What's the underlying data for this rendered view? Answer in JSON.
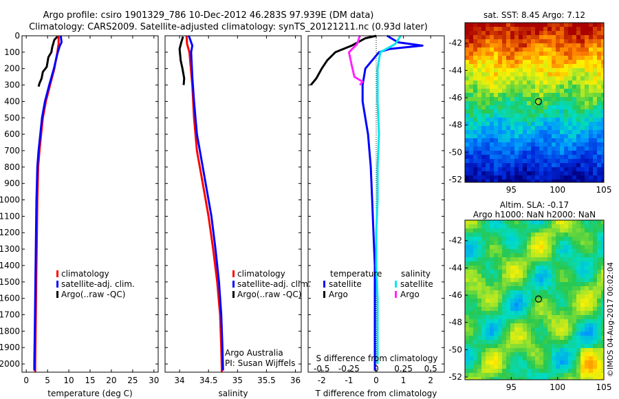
{
  "header": {
    "line1": "Argo profile: csiro 1901329_786 10-Dec-2012 46.283S 97.939E (DM data)",
    "line2": "Climatology: CARS2009. Satellite-adjusted climatology: synTS_20121211.nc (0.93d later)"
  },
  "colors": {
    "climatology": "#ff0000",
    "satellite": "#0000ff",
    "argo": "#000000",
    "salinity_satellite": "#00e5ee",
    "salinity_argo": "#ff22ff"
  },
  "chart_data": [
    {
      "type": "line",
      "id": "temperature",
      "xlabel": "temperature (deg C)",
      "xlim": [
        -1,
        31
      ],
      "xticks": [
        0,
        5,
        10,
        15,
        20,
        25,
        30
      ],
      "ylim": [
        2050,
        0
      ],
      "yticks": [
        0,
        100,
        200,
        300,
        400,
        500,
        600,
        700,
        800,
        900,
        1000,
        1100,
        1200,
        1300,
        1400,
        1500,
        1600,
        1700,
        1800,
        1900,
        2000
      ],
      "legend": [
        "climatology",
        "satellite-adj. clim.",
        "Argo(..raw -QC)"
      ],
      "series": [
        {
          "name": "climatology",
          "color": "#ff0000",
          "points": [
            [
              7.6,
              0
            ],
            [
              7.6,
              50
            ],
            [
              7.3,
              100
            ],
            [
              6.6,
              200
            ],
            [
              5.6,
              300
            ],
            [
              4.6,
              400
            ],
            [
              3.9,
              500
            ],
            [
              3.5,
              600
            ],
            [
              3.1,
              700
            ],
            [
              2.8,
              800
            ],
            [
              2.7,
              900
            ],
            [
              2.6,
              1000
            ],
            [
              2.5,
              1200
            ],
            [
              2.4,
              1400
            ],
            [
              2.3,
              1600
            ],
            [
              2.2,
              1800
            ],
            [
              2.1,
              2000
            ],
            [
              2.1,
              2050
            ]
          ]
        },
        {
          "name": "satellite-adj. clim.",
          "color": "#0000ff",
          "points": [
            [
              8.1,
              0
            ],
            [
              8.3,
              40
            ],
            [
              7.9,
              60
            ],
            [
              7.4,
              100
            ],
            [
              6.5,
              200
            ],
            [
              5.4,
              300
            ],
            [
              4.4,
              400
            ],
            [
              3.7,
              500
            ],
            [
              3.3,
              600
            ],
            [
              2.9,
              700
            ],
            [
              2.6,
              800
            ],
            [
              2.5,
              900
            ],
            [
              2.4,
              1000
            ],
            [
              2.3,
              1200
            ],
            [
              2.2,
              1400
            ],
            [
              2.1,
              1600
            ],
            [
              2.0,
              1800
            ],
            [
              1.9,
              2000
            ],
            [
              1.9,
              2040
            ]
          ]
        },
        {
          "name": "Argo(..raw -QC)",
          "color": "#000000",
          "points": [
            [
              7.3,
              5
            ],
            [
              6.6,
              25
            ],
            [
              6.1,
              70
            ],
            [
              5.9,
              100
            ],
            [
              5.2,
              130
            ],
            [
              4.8,
              190
            ],
            [
              3.9,
              220
            ],
            [
              3.6,
              260
            ],
            [
              3.1,
              290
            ],
            [
              2.9,
              310
            ]
          ]
        }
      ]
    },
    {
      "type": "line",
      "id": "salinity",
      "xlabel": "salinity",
      "xlim": [
        33.75,
        36.1
      ],
      "xticks": [
        34,
        34.5,
        35,
        35.5,
        36
      ],
      "xticklabels": [
        "34",
        "34.5",
        "35",
        "35.5",
        "36"
      ],
      "ylim": [
        2050,
        0
      ],
      "legend": [
        "climatology",
        "satellite-adj. clim.",
        "Argo(..raw -QC)"
      ],
      "annotation": [
        "Argo Australia",
        "PI: Susan Wijffels"
      ],
      "series": [
        {
          "name": "climatology",
          "color": "#ff0000",
          "points": [
            [
              34.12,
              0
            ],
            [
              34.13,
              50
            ],
            [
              34.17,
              100
            ],
            [
              34.22,
              300
            ],
            [
              34.25,
              500
            ],
            [
              34.3,
              700
            ],
            [
              34.4,
              900
            ],
            [
              34.5,
              1100
            ],
            [
              34.58,
              1300
            ],
            [
              34.65,
              1500
            ],
            [
              34.7,
              1700
            ],
            [
              34.72,
              1900
            ],
            [
              34.73,
              2050
            ]
          ]
        },
        {
          "name": "satellite-adj. clim.",
          "color": "#0000ff",
          "points": [
            [
              34.16,
              0
            ],
            [
              34.22,
              60
            ],
            [
              34.2,
              100
            ],
            [
              34.22,
              250
            ],
            [
              34.25,
              400
            ],
            [
              34.3,
              600
            ],
            [
              34.35,
              700
            ],
            [
              34.45,
              900
            ],
            [
              34.55,
              1100
            ],
            [
              34.62,
              1300
            ],
            [
              34.68,
              1500
            ],
            [
              34.72,
              1700
            ],
            [
              34.74,
              1900
            ],
            [
              34.75,
              2040
            ]
          ]
        },
        {
          "name": "Argo(..raw -QC)",
          "color": "#000000",
          "points": [
            [
              34.06,
              5
            ],
            [
              34.03,
              40
            ],
            [
              34.0,
              80
            ],
            [
              34.02,
              150
            ],
            [
              34.05,
              200
            ],
            [
              34.08,
              260
            ],
            [
              34.07,
              300
            ]
          ]
        }
      ]
    },
    {
      "type": "line",
      "id": "difference",
      "xlabel": "T difference from climatology",
      "xlabel_top": "S difference from climatology",
      "xlim": [
        -2.5,
        2.5
      ],
      "xticks": [
        -2,
        -1,
        0,
        1,
        2
      ],
      "sticks": [
        "-0.5",
        "-0.25",
        "0",
        "0.25",
        "0.5"
      ],
      "ylim": [
        2050,
        0
      ],
      "legend_titles": [
        "temperature",
        "salinity"
      ],
      "legend": [
        "satellite",
        "Argo",
        "satellite",
        "Argo"
      ],
      "series": [
        {
          "name": "temperature satellite",
          "color": "#0000ff",
          "points": [
            [
              0.4,
              0
            ],
            [
              0.8,
              40
            ],
            [
              1.7,
              60
            ],
            [
              0.5,
              80
            ],
            [
              0.1,
              100
            ],
            [
              -0.4,
              200
            ],
            [
              -0.5,
              300
            ],
            [
              -0.5,
              400
            ],
            [
              -0.3,
              600
            ],
            [
              -0.2,
              800
            ],
            [
              -0.15,
              1000
            ],
            [
              -0.1,
              1200
            ],
            [
              -0.05,
              1400
            ],
            [
              -0.05,
              1600
            ],
            [
              -0.05,
              1800
            ],
            [
              -0.05,
              2000
            ],
            [
              -0.05,
              2040
            ]
          ]
        },
        {
          "name": "temperature Argo",
          "color": "#000000",
          "points": [
            [
              0.0,
              0
            ],
            [
              -0.4,
              15
            ],
            [
              -0.9,
              60
            ],
            [
              -1.5,
              100
            ],
            [
              -1.8,
              150
            ],
            [
              -2.0,
              200
            ],
            [
              -2.2,
              260
            ],
            [
              -2.4,
              300
            ]
          ]
        },
        {
          "name": "salinity satellite",
          "color": "#00e5ee",
          "points": [
            [
              0.9,
              0
            ],
            [
              0.7,
              50
            ],
            [
              0.15,
              100
            ],
            [
              0.05,
              200
            ],
            [
              0.05,
              400
            ],
            [
              0.1,
              600
            ],
            [
              0.05,
              800
            ],
            [
              0.05,
              1000
            ],
            [
              0.0,
              1200
            ],
            [
              0.0,
              1400
            ],
            [
              0.05,
              1600
            ],
            [
              0.05,
              1800
            ],
            [
              0.05,
              2000
            ]
          ]
        },
        {
          "name": "salinity Argo",
          "color": "#ff22ff",
          "points": [
            [
              -0.6,
              0
            ],
            [
              -0.7,
              50
            ],
            [
              -1.0,
              100
            ],
            [
              -0.9,
              180
            ],
            [
              -0.8,
              250
            ],
            [
              -0.5,
              280
            ],
            [
              -0.6,
              300
            ]
          ]
        }
      ]
    },
    {
      "type": "heatmap",
      "id": "sst-map",
      "title": "sat. SST: 8.45 Argo: 7.12",
      "xlim": [
        90,
        105
      ],
      "ylim": [
        -52.2,
        -40.5
      ],
      "xticks": [
        95,
        100,
        105
      ],
      "yticks": [
        -42,
        -44,
        -46,
        -48,
        -50,
        -52
      ],
      "marker": [
        97.94,
        -46.28
      ]
    },
    {
      "type": "heatmap",
      "id": "sla-map",
      "title": "Altim. SLA: -0.17",
      "subtitle": "Argo h1000: NaN h2000: NaN",
      "xlim": [
        90,
        105
      ],
      "ylim": [
        -52.2,
        -40.5
      ],
      "xticks": [
        95,
        100,
        105
      ],
      "yticks": [
        -42,
        -44,
        -46,
        -48,
        -50,
        -52
      ],
      "marker": [
        97.94,
        -46.28
      ]
    }
  ],
  "watermark": "©IMOS 04-Aug-2017 00:02:04"
}
